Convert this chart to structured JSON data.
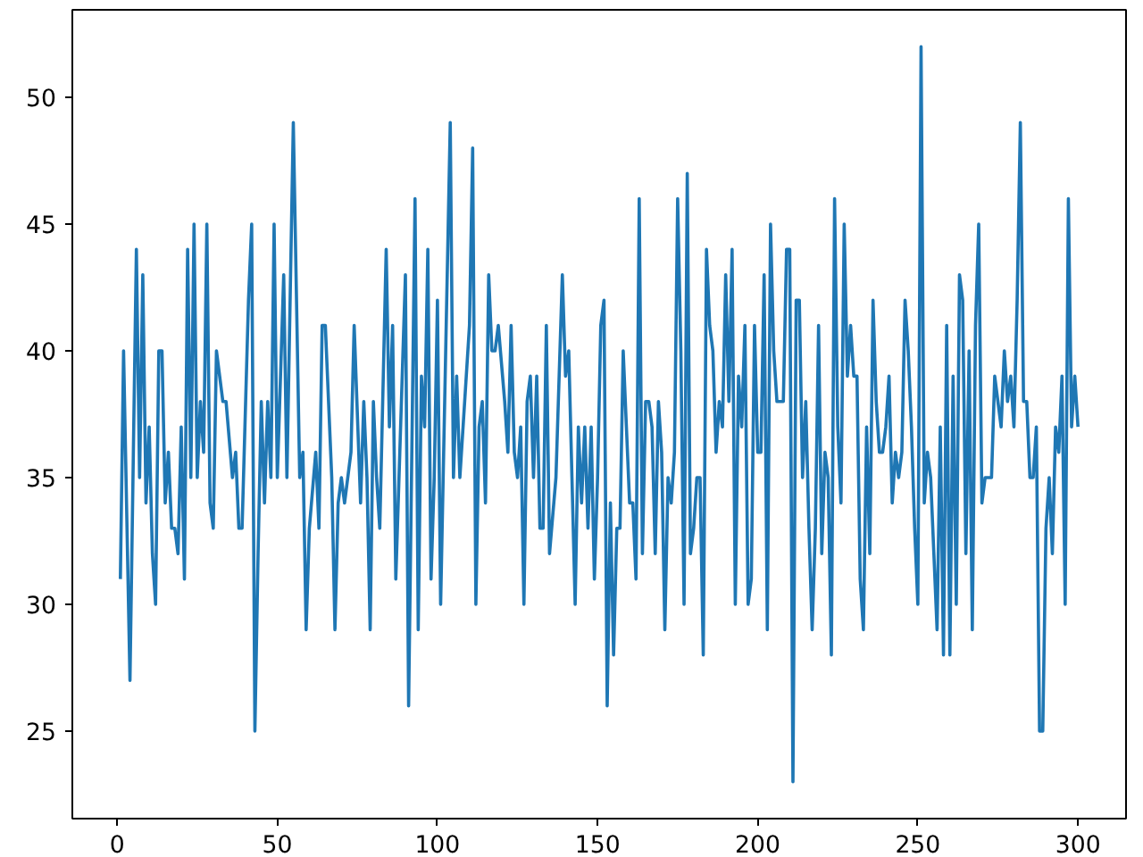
{
  "chart_data": {
    "type": "line",
    "xlim": [
      -14,
      315
    ],
    "ylim": [
      21.55,
      53.45
    ],
    "xticks": [
      0,
      50,
      100,
      150,
      200,
      250,
      300
    ],
    "yticks": [
      25,
      30,
      35,
      40,
      45,
      50
    ],
    "grid": false,
    "marker": "none",
    "line_style": "solid",
    "series": [
      {
        "color": "#1f77b4",
        "x": [
          1,
          2,
          4,
          6,
          7,
          8,
          9,
          10,
          11,
          12,
          13,
          14,
          15,
          16,
          17,
          18,
          19,
          20,
          21,
          22,
          23,
          24,
          25,
          26,
          27,
          28,
          29,
          30,
          31,
          33,
          34,
          36,
          37,
          38,
          39,
          41,
          42,
          43,
          44,
          45,
          46,
          47,
          48,
          49,
          50,
          52,
          53,
          55,
          57,
          58,
          59,
          60,
          62,
          63,
          64,
          65,
          67,
          68,
          69,
          70,
          71,
          73,
          74,
          76,
          77,
          78,
          79,
          80,
          81,
          82,
          84,
          85,
          86,
          87,
          88,
          90,
          91,
          93,
          94,
          95,
          96,
          97,
          98,
          99,
          100,
          101,
          104,
          105,
          106,
          107,
          110,
          111,
          112,
          113,
          114,
          115,
          116,
          117,
          118,
          119,
          121,
          122,
          123,
          124,
          125,
          126,
          127,
          128,
          129,
          130,
          131,
          132,
          133,
          134,
          135,
          137,
          139,
          140,
          141,
          142,
          143,
          144,
          145,
          146,
          147,
          148,
          149,
          150,
          151,
          152,
          153,
          154,
          155,
          156,
          157,
          158,
          159,
          160,
          161,
          162,
          163,
          164,
          165,
          166,
          167,
          168,
          169,
          170,
          171,
          172,
          173,
          174,
          175,
          176,
          177,
          178,
          179,
          180,
          181,
          182,
          183,
          184,
          185,
          186,
          187,
          188,
          189,
          190,
          191,
          192,
          193,
          194,
          195,
          196,
          197,
          198,
          199,
          200,
          201,
          202,
          203,
          204,
          205,
          206,
          207,
          208,
          209,
          210,
          211,
          212,
          213,
          214,
          215,
          216,
          217,
          218,
          219,
          220,
          221,
          222,
          223,
          224,
          225,
          226,
          227,
          228,
          229,
          230,
          231,
          232,
          233,
          234,
          235,
          236,
          237,
          238,
          239,
          240,
          241,
          242,
          243,
          244,
          245,
          246,
          247,
          248,
          249,
          250,
          251,
          252,
          253,
          254,
          255,
          256,
          257,
          258,
          259,
          260,
          261,
          262,
          263,
          264,
          265,
          266,
          267,
          268,
          269,
          270,
          271,
          272,
          273,
          274,
          275,
          276,
          277,
          278,
          279,
          280,
          281,
          282,
          283,
          284,
          285,
          286,
          287,
          288,
          289,
          290,
          291,
          292,
          293,
          294,
          295,
          296,
          297,
          298,
          299,
          300
        ],
        "values": [
          31,
          40,
          27,
          44,
          35,
          43,
          34,
          37,
          32,
          30,
          40,
          40,
          34,
          36,
          33,
          33,
          32,
          37,
          31,
          44,
          35,
          45,
          35,
          38,
          36,
          45,
          34,
          33,
          40,
          38,
          38,
          35,
          36,
          33,
          33,
          42,
          45,
          25,
          32,
          38,
          34,
          38,
          35,
          45,
          35,
          43,
          35,
          49,
          35,
          36,
          29,
          33,
          36,
          33,
          41,
          41,
          35,
          29,
          34,
          35,
          34,
          36,
          41,
          34,
          38,
          35,
          29,
          38,
          35,
          33,
          44,
          37,
          41,
          31,
          35,
          43,
          26,
          46,
          29,
          39,
          37,
          44,
          31,
          35,
          42,
          30,
          49,
          35,
          39,
          35,
          41,
          48,
          30,
          37,
          38,
          34,
          43,
          40,
          40,
          41,
          38,
          36,
          41,
          36,
          35,
          37,
          30,
          38,
          39,
          35,
          39,
          33,
          33,
          41,
          32,
          35,
          43,
          39,
          40,
          35,
          30,
          37,
          34,
          37,
          33,
          37,
          31,
          35,
          41,
          42,
          26,
          34,
          28,
          33,
          33,
          40,
          37,
          34,
          34,
          31,
          46,
          32,
          38,
          38,
          37,
          32,
          38,
          36,
          29,
          35,
          34,
          36,
          46,
          40,
          30,
          47,
          32,
          33,
          35,
          35,
          28,
          44,
          41,
          40,
          36,
          38,
          37,
          43,
          38,
          44,
          30,
          39,
          37,
          41,
          30,
          31,
          41,
          36,
          36,
          43,
          29,
          45,
          40,
          38,
          38,
          38,
          44,
          44,
          23,
          42,
          42,
          35,
          38,
          33,
          29,
          33,
          41,
          32,
          36,
          35,
          28,
          46,
          37,
          34,
          45,
          39,
          41,
          39,
          39,
          31,
          29,
          37,
          32,
          42,
          38,
          36,
          36,
          37,
          39,
          34,
          36,
          35,
          36,
          42,
          40,
          37,
          33,
          30,
          52,
          34,
          36,
          35,
          32,
          29,
          37,
          28,
          41,
          28,
          39,
          30,
          43,
          42,
          32,
          40,
          29,
          41,
          45,
          34,
          35,
          35,
          35,
          39,
          38,
          37,
          40,
          38,
          39,
          37,
          42,
          49,
          38,
          38,
          35,
          35,
          37,
          25,
          25,
          33,
          35,
          32,
          37,
          36,
          39,
          30,
          46,
          37,
          39,
          37
        ]
      }
    ]
  }
}
